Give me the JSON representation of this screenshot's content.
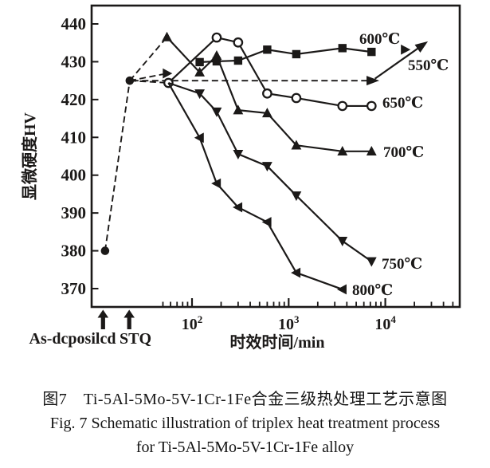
{
  "figure": {
    "caption_zh": "图7　Ti-5Al-5Mo-5V-1Cr-1Fe合金三级热处理工艺示意图",
    "caption_en_line1": "Fig. 7 Schematic illustration of triplex heat treatment process",
    "caption_en_line2": "for Ti-5Al-5Mo-5V-1Cr-1Fe alloy"
  },
  "chart_data": {
    "type": "line",
    "title": "",
    "xlabel": "时效时间/min",
    "ylabel": "显微硬度HV",
    "x_scale": "log",
    "grid": false,
    "ink_color": "#1b1918",
    "background": "#ffffff",
    "ylim": [
      365,
      445
    ],
    "y_ticks": [
      370,
      380,
      390,
      400,
      410,
      420,
      430,
      440
    ],
    "x_major_ticks": [
      100,
      1000,
      10000
    ],
    "x_tick_exponents": [
      2,
      3,
      4
    ],
    "x_minor_ticks": [
      50,
      60,
      70,
      80,
      90,
      200,
      300,
      400,
      500,
      600,
      700,
      800,
      900,
      2000,
      3000,
      4000,
      5000,
      6000,
      7000,
      8000,
      9000,
      20000,
      30000,
      40000,
      50000
    ],
    "process_points": {
      "as_deposited_hv": 380,
      "stq_hv": 425
    },
    "process_markers": {
      "marker": "dot",
      "points": [
        [
          12.6,
          380
        ],
        [
          22.7,
          425
        ]
      ]
    },
    "process_annotations": [
      {
        "label": "As-dcposilcd",
        "t": 12
      },
      {
        "label": "STQ",
        "t": 22.4
      }
    ],
    "schematic": [
      {
        "points": [
          [
            12.6,
            380
          ],
          [
            22.7,
            425
          ]
        ],
        "style": "dashed",
        "arrow_end": false
      },
      {
        "points": [
          [
            22.7,
            425
          ],
          [
            55,
            436.5
          ]
        ],
        "style": "dashed",
        "arrow_end": false
      },
      {
        "points": [
          [
            22.7,
            425
          ],
          [
            55,
            426.9
          ]
        ],
        "style": "dashed",
        "arrow_end": false
      },
      {
        "points": [
          [
            22.7,
            425
          ],
          [
            57,
            424.4
          ]
        ],
        "style": "dashed",
        "arrow_end": false
      },
      {
        "points": [
          [
            24,
            425
          ],
          [
            7300,
            425
          ]
        ],
        "style": "dashed",
        "arrow_end": true
      },
      {
        "points": [
          [
            7800,
            425.5
          ],
          [
            24000,
            434.3
          ]
        ],
        "style": "solid",
        "arrow_end": true
      }
    ],
    "series": [
      {
        "name": "550C",
        "label": "550℃",
        "marker": "triangle-right",
        "line": "none",
        "skip_first_marker": false,
        "points": [
          [
            55,
            426.9
          ],
          [
            16000,
            433.2
          ]
        ]
      },
      {
        "name": "600C",
        "label": "600℃",
        "marker": "square",
        "line": "solid",
        "skip_first_marker": false,
        "points": [
          [
            120,
            429.9
          ],
          [
            180,
            430.1
          ],
          [
            300,
            430.3
          ],
          [
            600,
            433.2
          ],
          [
            1200,
            432.0
          ],
          [
            3600,
            433.6
          ],
          [
            7200,
            432.6
          ]
        ]
      },
      {
        "name": "650C",
        "label": "650℃",
        "marker": "circle-open",
        "line": "solid",
        "skip_first_marker": false,
        "points": [
          [
            57,
            424.4
          ],
          [
            180,
            436.4
          ],
          [
            300,
            435.1
          ],
          [
            600,
            421.6
          ],
          [
            1200,
            420.4
          ],
          [
            3600,
            418.3
          ],
          [
            7200,
            418.3
          ]
        ]
      },
      {
        "name": "700C",
        "label": "700℃",
        "marker": "triangle-up",
        "line": "solid",
        "skip_first_marker": false,
        "points": [
          [
            55,
            436.5
          ],
          [
            120,
            427.2
          ],
          [
            180,
            431.6
          ],
          [
            300,
            417.2
          ],
          [
            600,
            416.4
          ],
          [
            1200,
            407.9
          ],
          [
            3600,
            406.3
          ],
          [
            7200,
            406.3
          ]
        ]
      },
      {
        "name": "750C",
        "label": "750℃",
        "marker": "triangle-down",
        "line": "solid",
        "skip_first_marker": true,
        "points": [
          [
            57,
            424.4
          ],
          [
            120,
            421.6
          ],
          [
            180,
            416.8
          ],
          [
            300,
            405.6
          ],
          [
            600,
            402.4
          ],
          [
            1200,
            394.6
          ],
          [
            3600,
            382.6
          ],
          [
            7200,
            377.2
          ]
        ]
      },
      {
        "name": "800C",
        "label": "800℃",
        "marker": "triangle-left",
        "line": "solid",
        "skip_first_marker": true,
        "points": [
          [
            57,
            424.4
          ],
          [
            120,
            409.9
          ],
          [
            180,
            397.8
          ],
          [
            300,
            391.5
          ],
          [
            600,
            387.6
          ],
          [
            1200,
            374.2
          ],
          [
            3600,
            369.8
          ]
        ]
      }
    ],
    "legend_position": "inline-right"
  }
}
